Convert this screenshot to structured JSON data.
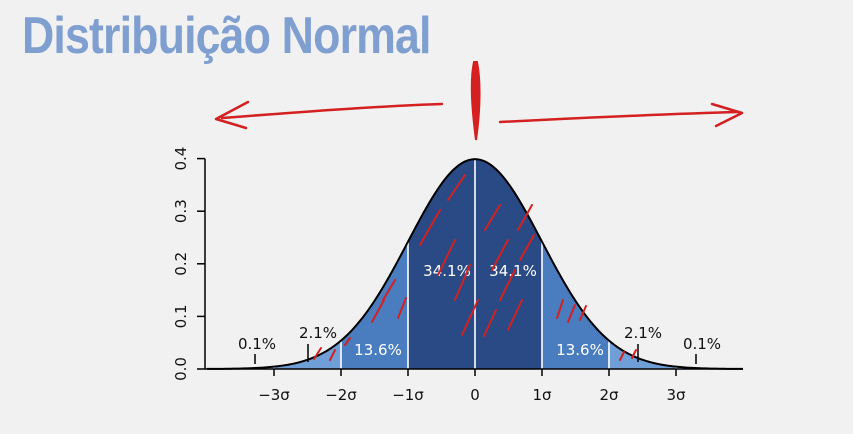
{
  "title": "Distribuição Normal",
  "colors": {
    "dark_band": "#2a4a85",
    "mid_band": "#4a7cc0",
    "outer_band": "#6f9fd6",
    "tail_band": "#a7c6ea",
    "title": "#7f9fd0",
    "annotation": "#d42020",
    "curve": "#000000"
  },
  "annotations": {
    "icons": [
      "arrow-left-annotation",
      "vertical-center-mark-annotation",
      "arrow-right-annotation",
      "red-hatch-annotation"
    ]
  },
  "chart_data": {
    "type": "area",
    "curve": "standard normal density",
    "x_ticks": [
      "−3σ",
      "−2σ",
      "−1σ",
      "0",
      "1σ",
      "2σ",
      "3σ"
    ],
    "x_tick_values": [
      -3,
      -2,
      -1,
      0,
      1,
      2,
      3
    ],
    "y_ticks": [
      "0.0",
      "0.1",
      "0.2",
      "0.3",
      "0.4"
    ],
    "y_tick_values": [
      0.0,
      0.1,
      0.2,
      0.3,
      0.4
    ],
    "xlim": [
      -4,
      4
    ],
    "ylim": [
      0,
      0.4
    ],
    "bands": [
      {
        "from": -1,
        "to": 0,
        "label": "34.1%"
      },
      {
        "from": 0,
        "to": 1,
        "label": "34.1%"
      },
      {
        "from": -2,
        "to": -1,
        "label": "13.6%"
      },
      {
        "from": 1,
        "to": 2,
        "label": "13.6%"
      },
      {
        "from": -3,
        "to": -2,
        "label": "2.1%"
      },
      {
        "from": 2,
        "to": 3,
        "label": "2.1%"
      },
      {
        "from": -4,
        "to": -3,
        "label": "0.1%"
      },
      {
        "from": 3,
        "to": 4,
        "label": "0.1%"
      }
    ]
  }
}
